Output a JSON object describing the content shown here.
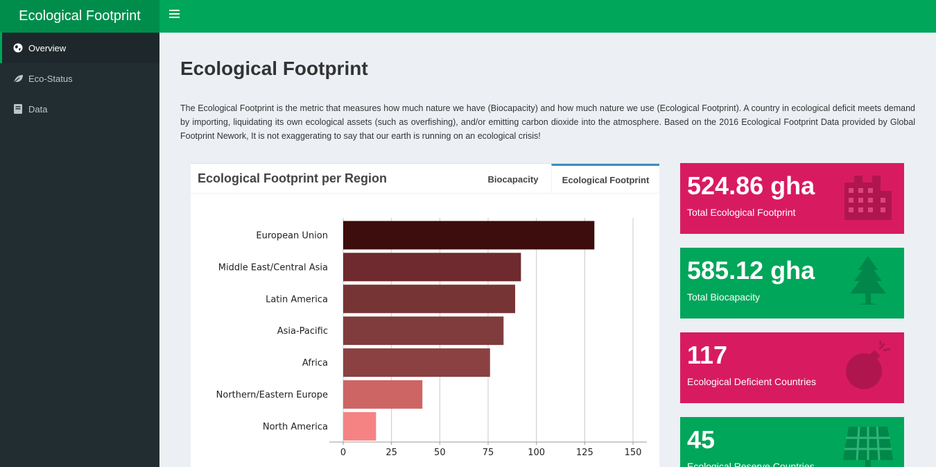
{
  "app": {
    "title": "Ecological Footprint"
  },
  "colors": {
    "header": "#00a65a",
    "brand": "#008d4c",
    "sidebar": "#222d32",
    "pink": "#d81b60",
    "green": "#00a65a"
  },
  "sidebar": {
    "items": [
      {
        "label": "Overview",
        "icon": "globe-icon",
        "active": true
      },
      {
        "label": "Eco-Status",
        "icon": "leaf-icon",
        "active": false
      },
      {
        "label": "Data",
        "icon": "book-icon",
        "active": false
      }
    ]
  },
  "main": {
    "title": "Ecological Footprint",
    "description": "The Ecological Footprint is the metric that measures how much nature we have (Biocapacity) and how much nature we use (Ecological Footprint). A country in ecological deficit meets demand by importing, liquidating its own ecological assets (such as overfishing), and/or emitting carbon dioxide into the atmosphere. Based on the 2016 Ecological Footprint Data provided by Global Footprint Nework, It is not exaggerating to say that our earth is running on an ecological crisis!",
    "box": {
      "title": "Ecological Footprint per Region",
      "tabs": [
        {
          "label": "Biocapacity",
          "active": false
        },
        {
          "label": "Ecological Footprint",
          "active": true
        }
      ]
    },
    "info_boxes": [
      {
        "value": "524.86 gha",
        "label": "Total Ecological Footprint",
        "icon": "industry-icon",
        "color": "pink"
      },
      {
        "value": "585.12 gha",
        "label": "Total Biocapacity",
        "icon": "tree-icon",
        "color": "green"
      },
      {
        "value": "117",
        "label": "Ecological Deficient Countries",
        "icon": "bomb-icon",
        "color": "pink"
      },
      {
        "value": "45",
        "label": "Ecological Reserve Countries",
        "icon": "solar-panel-icon",
        "color": "green"
      }
    ]
  },
  "chart_data": {
    "type": "bar",
    "orientation": "horizontal",
    "categories": [
      "European Union",
      "Middle East/Central Asia",
      "Latin America",
      "Asia-Pacific",
      "Africa",
      "Northern/Eastern Europe",
      "North America"
    ],
    "values": [
      130,
      92,
      89,
      83,
      76,
      41,
      17
    ],
    "colors": [
      "#3d0c0c",
      "#6e2a2e",
      "#763435",
      "#803c3c",
      "#8b4142",
      "#cd6564",
      "#f58383"
    ],
    "xlim": [
      0,
      150
    ],
    "xticks": [
      0,
      25,
      50,
      75,
      100,
      125,
      150
    ],
    "xlabel": "",
    "ylabel": "",
    "grid": true
  }
}
